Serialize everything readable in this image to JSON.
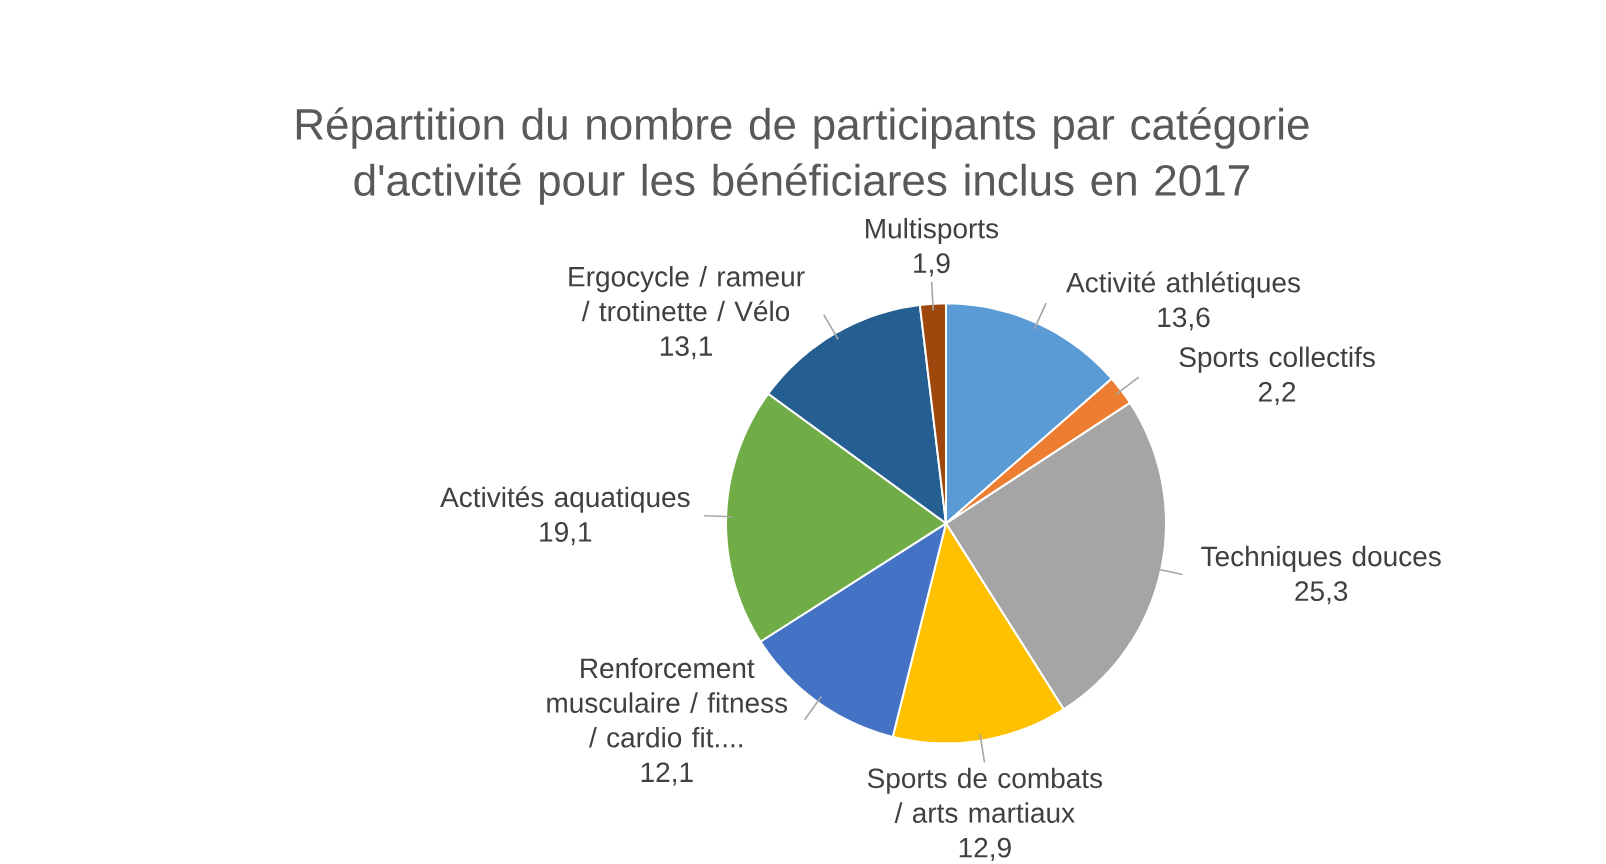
{
  "chart_data": {
    "type": "pie",
    "title": "Répartition du nombre de participants par catégorie d'activité pour les bénéficiares inclus en 2017",
    "categories": [
      "Activité athlétiques",
      "Sports collectifs",
      "Techniques douces",
      "Sports de combats / arts martiaux",
      "Renforcement musculaire / fitness / cardio fit....",
      "Activités aquatiques",
      "Ergocycle / rameur / trotinette / Vélo",
      "Multisports"
    ],
    "values": [
      13.6,
      2.2,
      25.3,
      12.9,
      12.1,
      19.1,
      13.1,
      1.9
    ],
    "value_labels": [
      "13,6",
      "2,2",
      "25,3",
      "12,9",
      "12,1",
      "19,1",
      "13,1",
      "1,9"
    ],
    "colors": [
      "#5b9bd5",
      "#ed7d31",
      "#a5a5a5",
      "#ffc000",
      "#4472c4",
      "#70ad47",
      "#255e91",
      "#9e480e"
    ]
  }
}
